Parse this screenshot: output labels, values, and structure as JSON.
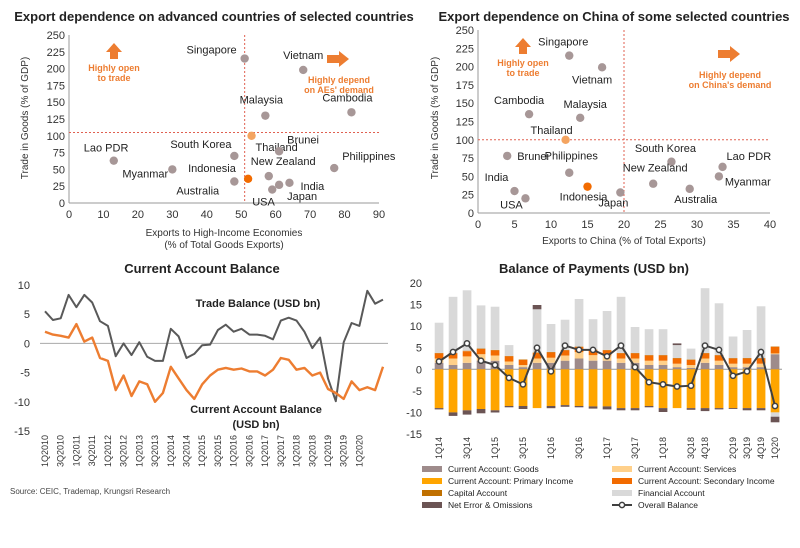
{
  "colors": {
    "grey_point": "#A79797",
    "orange": "#ED7D31",
    "dark_orange": "#F26B00",
    "trade_line": "#595959",
    "ca_goods": "#9E8B8B",
    "ca_services": "#FFD08A",
    "ca_primary": "#FFA500",
    "ca_secondary": "#F26B00",
    "capital": "#C07000",
    "financial": "#D9D9D9",
    "net_error": "#6B5454",
    "overall_line": "#404040",
    "ref_line": "#E06050"
  },
  "source": "Source: CEIC, Trademap, Krungsri Research",
  "chart_data": [
    {
      "type": "scatter",
      "title": "Export dependence on advanced countries of selected countries",
      "xlabel": "Exports to High-Income Economies",
      "xlabel2": "(% of Total Goods Exports)",
      "ylabel": "Trade in Goods (% of GDP)",
      "xlim": [
        0,
        90
      ],
      "ylim": [
        0,
        250
      ],
      "xticks": [
        0,
        10,
        20,
        30,
        40,
        50,
        60,
        70,
        80,
        90
      ],
      "yticks": [
        0,
        25,
        50,
        75,
        100,
        125,
        150,
        175,
        200,
        225,
        250
      ],
      "ref_x": 51,
      "ref_y": 105,
      "annotations": [
        "Highly open",
        "to trade",
        "Highly depend",
        "on AEs' demand"
      ],
      "points": [
        {
          "name": "Singapore",
          "x": 51,
          "y": 215
        },
        {
          "name": "Vietnam",
          "x": 68,
          "y": 198
        },
        {
          "name": "Malaysia",
          "x": 57,
          "y": 130
        },
        {
          "name": "Cambodia",
          "x": 82,
          "y": 135
        },
        {
          "name": "Thailand",
          "x": 53,
          "y": 100
        },
        {
          "name": "Brunei",
          "x": 61,
          "y": 77
        },
        {
          "name": "South Korea",
          "x": 48,
          "y": 70
        },
        {
          "name": "Lao PDR",
          "x": 13,
          "y": 63
        },
        {
          "name": "Myanmar",
          "x": 30,
          "y": 50
        },
        {
          "name": "Indonesia",
          "x": 52,
          "y": 36
        },
        {
          "name": "New Zealand",
          "x": 58,
          "y": 40
        },
        {
          "name": "Philippines",
          "x": 77,
          "y": 52
        },
        {
          "name": "Australia",
          "x": 48,
          "y": 32
        },
        {
          "name": "India",
          "x": 64,
          "y": 30
        },
        {
          "name": "USA",
          "x": 59,
          "y": 20
        },
        {
          "name": "Japan",
          "x": 61,
          "y": 27
        }
      ],
      "highlight": [
        "Thailand",
        "Indonesia"
      ]
    },
    {
      "type": "scatter",
      "title": "Export dependence on China of some selected countries",
      "xlabel": "Exports to China (% of Total Exports)",
      "ylabel": "Trade in Goods (% of GDP)",
      "xlim": [
        0,
        40
      ],
      "ylim": [
        0,
        250
      ],
      "xticks": [
        0,
        5,
        10,
        15,
        20,
        25,
        30,
        35,
        40
      ],
      "yticks": [
        0,
        25,
        50,
        75,
        100,
        125,
        150,
        175,
        200,
        225,
        250
      ],
      "ref_x": 20,
      "ref_y": 100,
      "annotations": [
        "Highly open",
        "to trade",
        "Highly depend",
        "on China's demand"
      ],
      "points": [
        {
          "name": "Singapore",
          "x": 12.5,
          "y": 215
        },
        {
          "name": "Vietnam",
          "x": 17,
          "y": 199
        },
        {
          "name": "Cambodia",
          "x": 7,
          "y": 135
        },
        {
          "name": "Malaysia",
          "x": 14,
          "y": 130
        },
        {
          "name": "Thailand",
          "x": 12,
          "y": 100
        },
        {
          "name": "Brunei",
          "x": 4,
          "y": 78
        },
        {
          "name": "Philippines",
          "x": 12.5,
          "y": 55
        },
        {
          "name": "South Korea",
          "x": 26.5,
          "y": 70
        },
        {
          "name": "Lao PDR",
          "x": 33.5,
          "y": 63
        },
        {
          "name": "Myanmar",
          "x": 33,
          "y": 50
        },
        {
          "name": "New Zealand",
          "x": 24,
          "y": 40
        },
        {
          "name": "India",
          "x": 5,
          "y": 30
        },
        {
          "name": "USA",
          "x": 6.5,
          "y": 20
        },
        {
          "name": "Indonesia",
          "x": 15,
          "y": 36
        },
        {
          "name": "Japan",
          "x": 19.5,
          "y": 28
        },
        {
          "name": "Australia",
          "x": 29,
          "y": 33
        }
      ],
      "highlight": [
        "Thailand",
        "Indonesia"
      ]
    },
    {
      "type": "line",
      "title": "Current Account Balance",
      "ylim": [
        -15,
        10
      ],
      "yticks": [
        -15,
        -10,
        -5,
        0,
        5,
        10
      ],
      "xtick_labels": [
        "1Q2010",
        "3Q2010",
        "1Q2011",
        "3Q2011",
        "1Q2012",
        "3Q2012",
        "1Q2013",
        "3Q2013",
        "1Q2014",
        "3Q2014",
        "1Q2015",
        "3Q2015",
        "1Q2016",
        "3Q2016",
        "1Q2017",
        "3Q2017",
        "1Q2018",
        "3Q2018",
        "1Q2019",
        "3Q2019",
        "1Q2020"
      ],
      "series": [
        {
          "name": "Trade Balance (USD bn)",
          "values": [
            5.5,
            4,
            4.3,
            8.3,
            6.2,
            8.3,
            7,
            3.8,
            3,
            -2.2,
            0,
            -2,
            0.2,
            -2.3,
            -3,
            -3,
            2.5,
            1.2,
            -2.5,
            -1.8,
            -0.3,
            -0.2,
            2.3,
            3.2,
            2,
            2.5,
            1.5,
            1.5,
            1.3,
            0.7,
            3.9,
            4.4,
            3.9,
            2,
            -0.8,
            1,
            -6,
            -9.9,
            0.2,
            3.5,
            3,
            9,
            6.8,
            7.5
          ]
        },
        {
          "name": "Current Account Balance (USD bn)",
          "values": [
            2,
            1.5,
            1.3,
            1,
            3.3,
            0.3,
            1,
            -2.5,
            -3,
            -8,
            -5.5,
            -9,
            -6.5,
            -7,
            -10,
            -8.5,
            -4,
            -6,
            -8,
            -9.5,
            -7,
            -5.5,
            -4.5,
            -4.2,
            -4.5,
            -4.3,
            -4.8,
            -4.8,
            -5.5,
            -4.5,
            -2.5,
            -2.8,
            -4.5,
            -4.2,
            -5.5,
            -5,
            -7.8,
            -8.5,
            -9.5,
            -6.5,
            -8,
            -7.5,
            -8,
            -4
          ]
        }
      ]
    },
    {
      "type": "bar",
      "stacked": true,
      "title": "Balance of Payments (USD bn)",
      "ylim": [
        -15,
        20
      ],
      "yticks": [
        -15,
        -10,
        -5,
        0,
        5,
        10,
        15,
        20
      ],
      "categories": [
        "1Q14",
        "2Q14",
        "3Q14",
        "4Q14",
        "1Q15",
        "2Q15",
        "3Q15",
        "4Q15",
        "1Q16",
        "2Q16",
        "3Q16",
        "4Q16",
        "1Q17",
        "2Q17",
        "3Q17",
        "4Q17",
        "1Q18",
        "2Q18",
        "3Q18",
        "4Q18",
        "1Q19",
        "2Q19",
        "3Q19",
        "4Q19",
        "1Q20"
      ],
      "xtick_labels": [
        "1Q14",
        "3Q14",
        "1Q15",
        "3Q15",
        "1Q16",
        "3Q16",
        "1Q17",
        "3Q17",
        "1Q18",
        "3Q18",
        "4Q18",
        "2Q19",
        "3Q19",
        "4Q19",
        "1Q20"
      ],
      "series": [
        {
          "name": "Current Account: Goods",
          "values": [
            1.5,
            1,
            1.5,
            2,
            2,
            1,
            0.5,
            1.5,
            1.5,
            2,
            2.5,
            2,
            2,
            1.5,
            1.5,
            1,
            1,
            0.5,
            0.3,
            1.5,
            1,
            0.5,
            0.5,
            0.5,
            3.5
          ]
        },
        {
          "name": "Current Account: Services",
          "values": [
            1,
            1.5,
            1.5,
            1.5,
            1.2,
            0.8,
            0.5,
            1,
            1.2,
            1.2,
            1.5,
            1.3,
            1.2,
            1,
            1,
            1,
            1,
            0.8,
            0.7,
            1,
            1,
            0.8,
            0.8,
            0.8,
            0.2
          ]
        },
        {
          "name": "Current Account: Primary Income",
          "values": [
            -9,
            -10,
            -9.5,
            -9.2,
            -9.5,
            -8.5,
            -8.5,
            -9,
            -8.5,
            -8.3,
            -8.5,
            -8.6,
            -8.6,
            -9,
            -9,
            -8.5,
            -9,
            -9,
            -9,
            -9,
            -9,
            -9,
            -9,
            -9,
            -10
          ]
        },
        {
          "name": "Current Account: Secondary Income",
          "values": [
            1.2,
            1.2,
            1.2,
            1.2,
            1.2,
            1.2,
            1.2,
            1.3,
            1.2,
            1.2,
            1.2,
            1.2,
            1.2,
            1.2,
            1.2,
            1.2,
            1.2,
            1.2,
            1.2,
            1.2,
            1.2,
            1.2,
            1.2,
            1.2,
            1.5
          ]
        },
        {
          "name": "Capital Account",
          "values": [
            0.1,
            0.1,
            0.1,
            0.1,
            0.1,
            0.1,
            0.1,
            0.1,
            0.1,
            0.1,
            0.1,
            0.1,
            0.1,
            0.1,
            0.1,
            0.1,
            0.1,
            0.1,
            0.1,
            0.1,
            0.1,
            0.1,
            0.1,
            0.1,
            0.1
          ]
        },
        {
          "name": "Financial Account",
          "values": [
            7,
            13,
            14,
            10,
            10,
            2.5,
            0,
            10,
            6.5,
            7,
            11,
            7,
            9,
            13,
            6,
            6,
            6,
            3,
            2.5,
            15,
            12,
            5,
            6.5,
            12,
            -1
          ]
        },
        {
          "name": "Net Error & Omissions",
          "values": [
            -0.3,
            -0.8,
            -1,
            -1,
            -0.5,
            -0.3,
            -0.7,
            1,
            -0.5,
            -0.4,
            -0.3,
            -0.5,
            -0.7,
            -0.5,
            -0.5,
            -0.3,
            -0.9,
            0.4,
            -0.4,
            -0.7,
            -0.3,
            -0.2,
            -0.5,
            -0.5,
            -1.3
          ]
        },
        {
          "name": "Overall Balance",
          "type": "line",
          "values": [
            1.8,
            4,
            6,
            2,
            1,
            -2,
            -3.5,
            5,
            -0.5,
            5.5,
            4.5,
            4.5,
            3,
            5.5,
            0.5,
            -3,
            -3.5,
            -4,
            -3.8,
            5.5,
            4.5,
            -1.5,
            -0.5,
            4,
            -8.5
          ]
        }
      ]
    }
  ]
}
